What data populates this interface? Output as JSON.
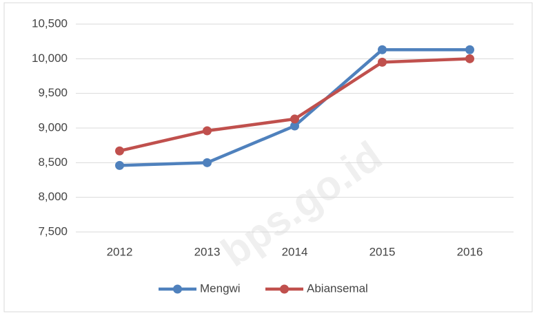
{
  "chart_data": {
    "type": "line",
    "categories": [
      "2012",
      "2013",
      "2014",
      "2015",
      "2016"
    ],
    "series": [
      {
        "name": "Mengwi",
        "color": "#4f81bd",
        "values": [
          8460,
          8500,
          9030,
          10130,
          10130
        ]
      },
      {
        "name": "Abiansemal",
        "color": "#c0504d",
        "values": [
          8670,
          8960,
          9130,
          9950,
          10000
        ]
      }
    ],
    "ylim": [
      7500,
      10500
    ],
    "yticks": [
      {
        "value": 7500,
        "label": "7,500"
      },
      {
        "value": 8000,
        "label": "8,000"
      },
      {
        "value": 8500,
        "label": "8,500"
      },
      {
        "value": 9000,
        "label": "9,000"
      },
      {
        "value": 9500,
        "label": "9,500"
      },
      {
        "value": 10000,
        "label": "10,000"
      },
      {
        "value": 10500,
        "label": "10,500"
      }
    ],
    "grid": true,
    "legend": "bottom",
    "watermark": "bps.go.id"
  }
}
